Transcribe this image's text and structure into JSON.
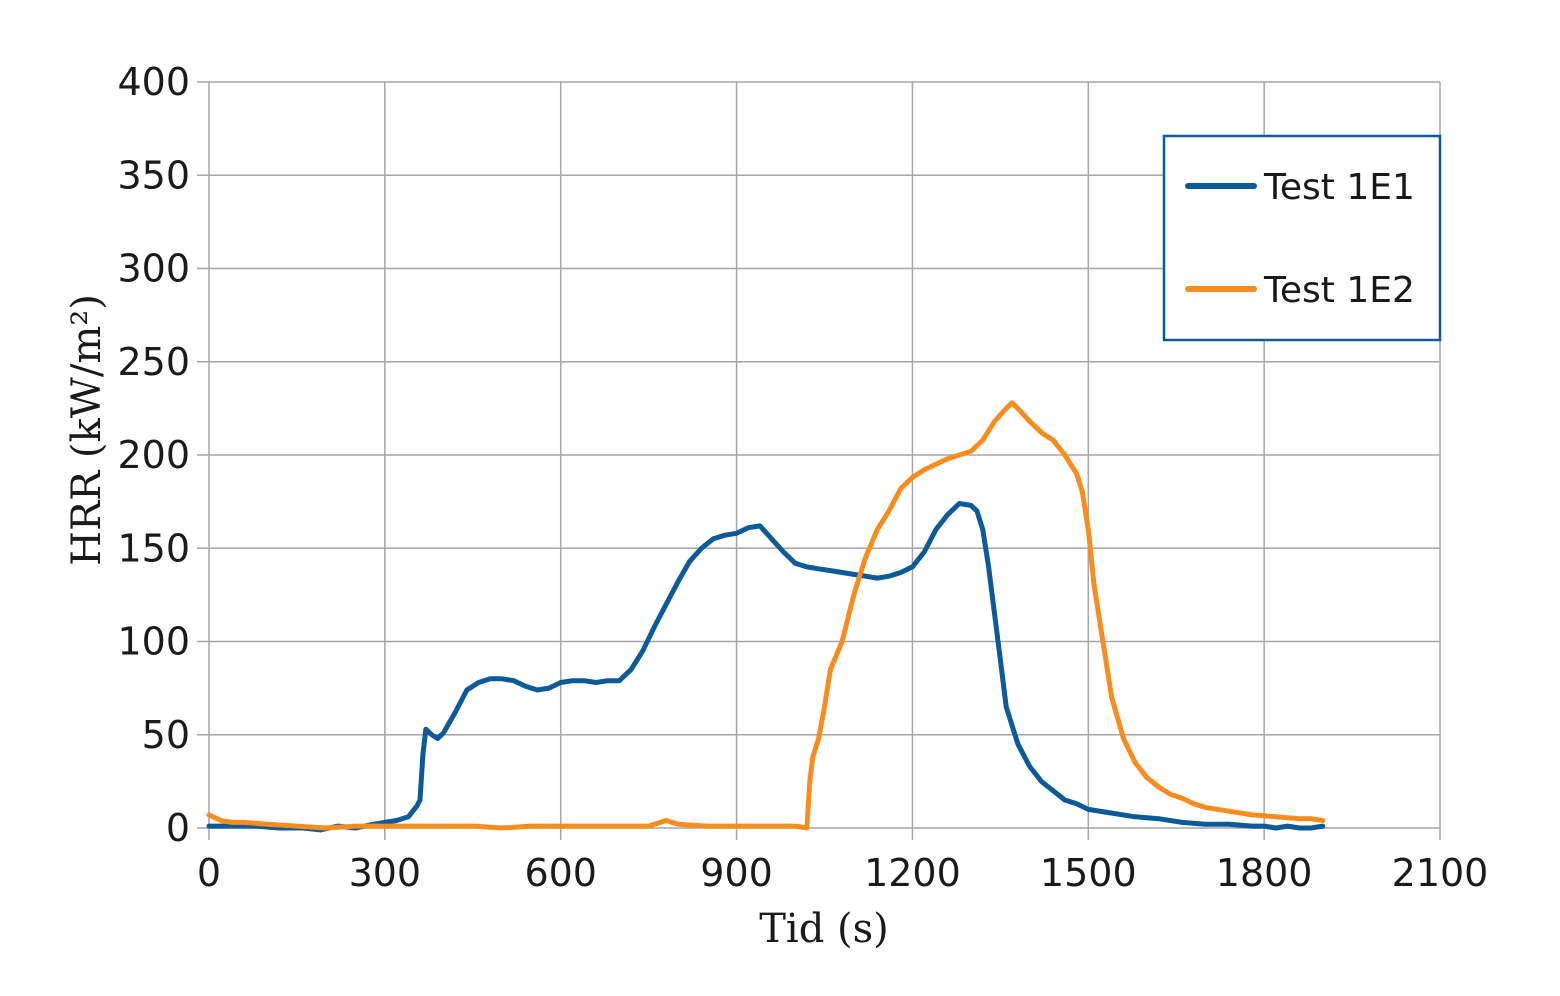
{
  "chart_data": {
    "type": "line",
    "xlabel": "Tid (s)",
    "ylabel": "HRR (kW/m²)",
    "xlim": [
      0,
      2100
    ],
    "ylim": [
      0,
      400
    ],
    "x_ticks": [
      0,
      300,
      600,
      900,
      1200,
      1500,
      1800,
      2100
    ],
    "y_ticks": [
      0,
      50,
      100,
      150,
      200,
      250,
      300,
      350,
      400
    ],
    "grid": true,
    "legend_position": "top-right",
    "colors": {
      "Test 1E1": "#0d5a99",
      "Test 1E2": "#f98c1e",
      "legend_border": "#0d5a99"
    },
    "series": [
      {
        "name": "Test 1E1",
        "x": [
          0,
          40,
          80,
          120,
          160,
          190,
          220,
          250,
          280,
          300,
          320,
          340,
          350,
          355,
          360,
          365,
          370,
          380,
          390,
          400,
          420,
          440,
          460,
          480,
          500,
          520,
          540,
          560,
          580,
          600,
          620,
          640,
          660,
          680,
          700,
          720,
          740,
          760,
          780,
          800,
          820,
          840,
          860,
          880,
          900,
          920,
          940,
          960,
          980,
          1000,
          1020,
          1040,
          1060,
          1080,
          1100,
          1120,
          1140,
          1160,
          1180,
          1200,
          1220,
          1240,
          1260,
          1280,
          1300,
          1310,
          1320,
          1330,
          1340,
          1350,
          1360,
          1380,
          1400,
          1420,
          1440,
          1460,
          1480,
          1500,
          1540,
          1580,
          1620,
          1660,
          1700,
          1740,
          1780,
          1800,
          1820,
          1840,
          1860,
          1880,
          1900
        ],
        "values": [
          1,
          1,
          1,
          0,
          0,
          -1,
          1,
          0,
          2,
          3,
          4,
          6,
          10,
          12,
          15,
          40,
          53,
          50,
          48,
          51,
          62,
          74,
          78,
          80,
          80,
          79,
          76,
          74,
          75,
          78,
          79,
          79,
          78,
          79,
          79,
          85,
          95,
          108,
          120,
          132,
          143,
          150,
          155,
          157,
          158,
          161,
          162,
          155,
          148,
          142,
          140,
          139,
          138,
          137,
          136,
          135,
          134,
          135,
          137,
          140,
          148,
          160,
          168,
          174,
          173,
          170,
          160,
          140,
          115,
          90,
          65,
          45,
          33,
          25,
          20,
          15,
          13,
          10,
          8,
          6,
          5,
          3,
          2,
          2,
          1,
          1,
          0,
          1,
          0,
          0,
          1
        ]
      },
      {
        "name": "Test 1E2",
        "x": [
          0,
          20,
          40,
          60,
          100,
          150,
          200,
          250,
          300,
          350,
          400,
          450,
          500,
          550,
          600,
          650,
          700,
          750,
          780,
          800,
          850,
          900,
          950,
          1000,
          1020,
          1025,
          1030,
          1040,
          1050,
          1060,
          1080,
          1100,
          1120,
          1140,
          1160,
          1180,
          1200,
          1220,
          1240,
          1260,
          1280,
          1300,
          1320,
          1340,
          1360,
          1370,
          1380,
          1400,
          1420,
          1440,
          1460,
          1480,
          1490,
          1500,
          1510,
          1520,
          1540,
          1560,
          1580,
          1600,
          1620,
          1640,
          1660,
          1680,
          1700,
          1740,
          1780,
          1820,
          1860,
          1880,
          1900
        ],
        "values": [
          7,
          4,
          3,
          3,
          2,
          1,
          0,
          1,
          1,
          1,
          1,
          1,
          0,
          1,
          1,
          1,
          1,
          1,
          4,
          2,
          1,
          1,
          1,
          1,
          0,
          25,
          38,
          48,
          65,
          85,
          100,
          125,
          145,
          160,
          170,
          182,
          188,
          192,
          195,
          198,
          200,
          202,
          208,
          218,
          225,
          228,
          225,
          218,
          212,
          208,
          200,
          190,
          180,
          160,
          130,
          110,
          70,
          48,
          35,
          27,
          22,
          18,
          16,
          13,
          11,
          9,
          7,
          6,
          5,
          5,
          4
        ]
      }
    ]
  }
}
